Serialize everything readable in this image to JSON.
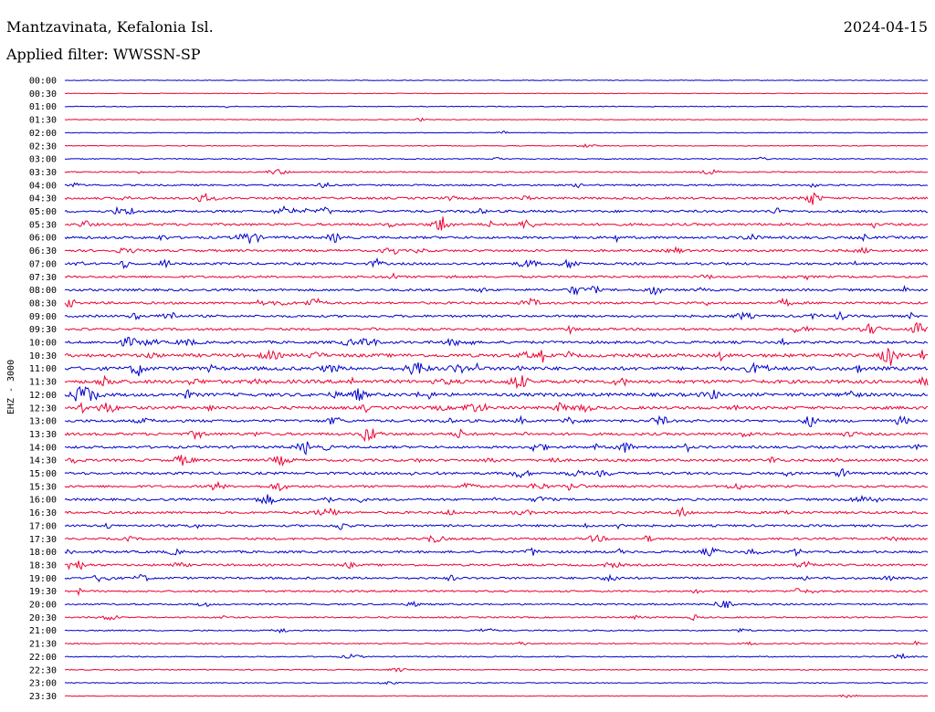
{
  "header": {
    "station": "Mantzavinata, Kefalonia Isl.",
    "date": "2024-04-15",
    "filter": "Applied filter: WWSSN-SP"
  },
  "chart_data": {
    "type": "line",
    "title": "Mantzavinata, Kefalonia Isl.",
    "ylabel": "EHZ - 3000",
    "colors": [
      "#0000cc",
      "#ee0033"
    ],
    "rows": [
      {
        "label": "00:00",
        "activity": 0.02
      },
      {
        "label": "00:30",
        "activity": 0.01
      },
      {
        "label": "01:00",
        "activity": 0.05
      },
      {
        "label": "01:30",
        "activity": 0.04
      },
      {
        "label": "02:00",
        "activity": 0.05
      },
      {
        "label": "02:30",
        "activity": 0.06
      },
      {
        "label": "03:00",
        "activity": 0.12
      },
      {
        "label": "03:30",
        "activity": 0.2
      },
      {
        "label": "04:00",
        "activity": 0.3
      },
      {
        "label": "04:30",
        "activity": 0.45
      },
      {
        "label": "05:00",
        "activity": 0.5
      },
      {
        "label": "05:30",
        "activity": 0.55
      },
      {
        "label": "06:00",
        "activity": 0.55
      },
      {
        "label": "06:30",
        "activity": 0.5
      },
      {
        "label": "07:00",
        "activity": 0.5
      },
      {
        "label": "07:30",
        "activity": 0.45
      },
      {
        "label": "08:00",
        "activity": 0.5
      },
      {
        "label": "08:30",
        "activity": 0.5
      },
      {
        "label": "09:00",
        "activity": 0.5
      },
      {
        "label": "09:30",
        "activity": 0.5
      },
      {
        "label": "10:00",
        "activity": 0.6
      },
      {
        "label": "10:30",
        "activity": 0.8
      },
      {
        "label": "11:00",
        "activity": 0.85
      },
      {
        "label": "11:30",
        "activity": 0.85
      },
      {
        "label": "12:00",
        "activity": 0.8
      },
      {
        "label": "12:30",
        "activity": 0.7
      },
      {
        "label": "13:00",
        "activity": 0.6
      },
      {
        "label": "13:30",
        "activity": 0.6
      },
      {
        "label": "14:00",
        "activity": 0.55
      },
      {
        "label": "14:30",
        "activity": 0.55
      },
      {
        "label": "15:00",
        "activity": 0.55
      },
      {
        "label": "15:30",
        "activity": 0.5
      },
      {
        "label": "16:00",
        "activity": 0.5
      },
      {
        "label": "16:30",
        "activity": 0.5
      },
      {
        "label": "17:00",
        "activity": 0.45
      },
      {
        "label": "17:30",
        "activity": 0.45
      },
      {
        "label": "18:00",
        "activity": 0.5
      },
      {
        "label": "18:30",
        "activity": 0.45
      },
      {
        "label": "19:00",
        "activity": 0.45
      },
      {
        "label": "19:30",
        "activity": 0.35
      },
      {
        "label": "20:00",
        "activity": 0.3
      },
      {
        "label": "20:30",
        "activity": 0.25
      },
      {
        "label": "21:00",
        "activity": 0.2
      },
      {
        "label": "21:30",
        "activity": 0.2
      },
      {
        "label": "22:00",
        "activity": 0.15
      },
      {
        "label": "22:30",
        "activity": 0.1
      },
      {
        "label": "23:00",
        "activity": 0.08
      },
      {
        "label": "23:30",
        "activity": 0.05
      }
    ]
  }
}
